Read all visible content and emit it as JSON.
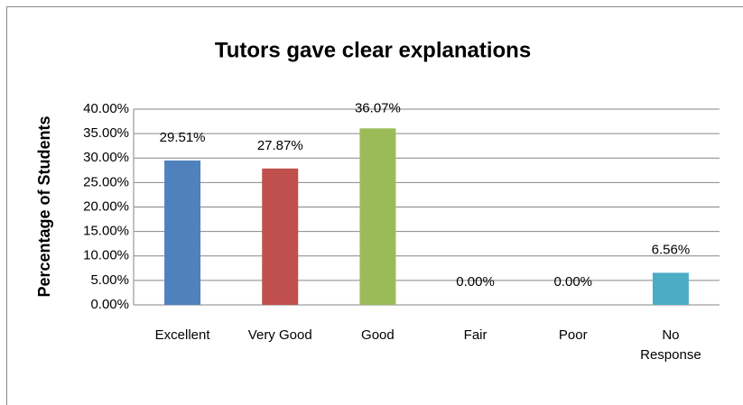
{
  "chart_data": {
    "type": "bar",
    "title": "Tutors gave clear explanations",
    "y_label": "Percentage of Students",
    "categories": [
      "Excellent",
      "Very Good",
      "Good",
      "Fair",
      "Poor",
      "No Response"
    ],
    "values": [
      29.51,
      27.87,
      36.07,
      0,
      0,
      6.56
    ],
    "value_labels": [
      "29.51%",
      "27.87%",
      "36.07%",
      "0.00%",
      "0.00%",
      "6.56%"
    ],
    "colors": [
      "#4f81bd",
      "#c0504d",
      "#9bbb59",
      "#8064a2",
      "#f79646",
      "#4bacc6"
    ],
    "ylim": [
      0,
      40
    ],
    "yticks": [
      {
        "value": 0,
        "label": "0.00%"
      },
      {
        "value": 5,
        "label": "5.00%"
      },
      {
        "value": 10,
        "label": "10.00%"
      },
      {
        "value": 15,
        "label": "15.00%"
      },
      {
        "value": 20,
        "label": "20.00%"
      },
      {
        "value": 25,
        "label": "25.00%"
      },
      {
        "value": 30,
        "label": "30.00%"
      },
      {
        "value": 35,
        "label": "35.00%"
      },
      {
        "value": 40,
        "label": "40.00%"
      }
    ],
    "grid": true
  }
}
